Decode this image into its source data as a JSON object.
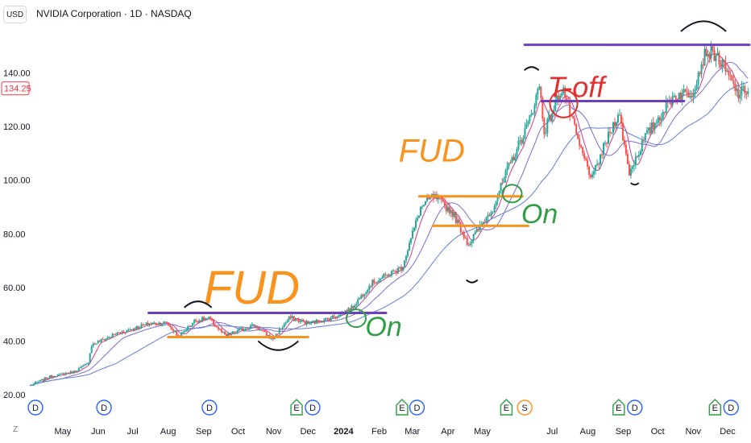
{
  "header": {
    "currency": "USD",
    "title": "NVIDIA Corporation · 1D · NASDAQ"
  },
  "z_label": "Z",
  "chart_data": {
    "type": "candlestick",
    "symbol": "NVIDIA Corporation",
    "interval": "1D",
    "exchange": "NASDAQ",
    "currency": "USD",
    "last_price": "134.25",
    "ylim": [
      17,
      157
    ],
    "y_ticks": [
      "20.00",
      "40.00",
      "60.00",
      "80.00",
      "100.00",
      "120.00",
      "140.00"
    ],
    "y_tick_values": [
      20,
      40,
      60,
      80,
      100,
      120,
      140
    ],
    "x_ticks": [
      "May",
      "Jun",
      "Jul",
      "Aug",
      "Sep",
      "Oct",
      "Nov",
      "Dec",
      "2024",
      "Feb",
      "Mar",
      "Apr",
      "May",
      "Jul",
      "Aug",
      "Sep",
      "Oct",
      "Nov",
      "Dec"
    ],
    "x_tick_dates": [
      "2023-05-01",
      "2023-06-01",
      "2023-07-01",
      "2023-08-01",
      "2023-09-01",
      "2023-10-01",
      "2023-11-01",
      "2023-12-01",
      "2024-01-01",
      "2024-02-01",
      "2024-03-01",
      "2024-04-01",
      "2024-05-01",
      "2024-07-01",
      "2024-08-01",
      "2024-09-01",
      "2024-10-01",
      "2024-11-01",
      "2024-12-01"
    ],
    "x_range": [
      "2023-04-03",
      "2024-12-20"
    ],
    "price_path": [
      [
        "2023-04-03",
        23.5
      ],
      [
        "2023-04-20",
        26.8
      ],
      [
        "2023-05-10",
        28.5
      ],
      [
        "2023-05-23",
        31.5
      ],
      [
        "2023-05-26",
        38.5
      ],
      [
        "2023-06-15",
        42.5
      ],
      [
        "2023-07-15",
        46.5
      ],
      [
        "2023-07-31",
        46.8
      ],
      [
        "2023-08-10",
        41.5
      ],
      [
        "2023-08-24",
        47.5
      ],
      [
        "2023-09-05",
        48.5
      ],
      [
        "2023-09-20",
        41.8
      ],
      [
        "2023-10-05",
        44.5
      ],
      [
        "2023-10-15",
        46.0
      ],
      [
        "2023-10-31",
        40.7
      ],
      [
        "2023-11-15",
        48.8
      ],
      [
        "2023-12-01",
        46.5
      ],
      [
        "2023-12-20",
        48.5
      ],
      [
        "2024-01-08",
        52.2
      ],
      [
        "2024-01-25",
        61.5
      ],
      [
        "2024-02-21",
        67.5
      ],
      [
        "2024-03-08",
        89.5
      ],
      [
        "2024-03-19",
        94.0
      ],
      [
        "2024-04-05",
        88.0
      ],
      [
        "2024-04-19",
        76.2
      ],
      [
        "2024-05-10",
        89.5
      ],
      [
        "2024-05-23",
        103.8
      ],
      [
        "2024-06-10",
        121.0
      ],
      [
        "2024-06-20",
        135.5
      ],
      [
        "2024-06-24",
        118.1
      ],
      [
        "2024-07-10",
        134.9
      ],
      [
        "2024-07-25",
        112.3
      ],
      [
        "2024-08-05",
        100.4
      ],
      [
        "2024-08-12",
        109.0
      ],
      [
        "2024-08-28",
        125.6
      ],
      [
        "2024-09-06",
        102.8
      ],
      [
        "2024-09-20",
        116.0
      ],
      [
        "2024-10-15",
        131.6
      ],
      [
        "2024-10-31",
        132.8
      ],
      [
        "2024-11-12",
        148.2
      ],
      [
        "2024-11-21",
        146.7
      ],
      [
        "2024-12-02",
        138.6
      ],
      [
        "2024-12-10",
        132.0
      ],
      [
        "2024-12-20",
        134.25
      ]
    ],
    "moving_averages": [
      {
        "color": "#cc3b8f",
        "window_days": 10
      },
      {
        "color": "#7e6bd0",
        "window_days": 30
      },
      {
        "color": "#5f7fd6",
        "window_days": 75
      }
    ],
    "colors": {
      "up": "#26a69a",
      "down": "#ef5350",
      "price_tag": "#f23645"
    },
    "grid": false,
    "events": [
      {
        "label": "D",
        "date": "2023-06-06",
        "kind": "dividend"
      },
      {
        "label": "D",
        "date": "2023-09-06",
        "kind": "dividend"
      },
      {
        "label": "E",
        "date": "2023-11-21",
        "kind": "earnings"
      },
      {
        "label": "D",
        "date": "2023-12-05",
        "kind": "dividend"
      },
      {
        "label": "E",
        "date": "2024-02-21",
        "kind": "earnings"
      },
      {
        "label": "D",
        "date": "2024-03-05",
        "kind": "dividend"
      },
      {
        "label": "E",
        "date": "2024-05-22",
        "kind": "earnings"
      },
      {
        "label": "S",
        "date": "2024-06-07",
        "kind": "split"
      },
      {
        "label": "E",
        "date": "2024-08-28",
        "kind": "earnings"
      },
      {
        "label": "D",
        "date": "2024-09-11",
        "kind": "dividend"
      },
      {
        "label": "E",
        "date": "2024-11-20",
        "kind": "earnings"
      },
      {
        "label": "D",
        "date": "2024-12-04",
        "kind": "dividend"
      }
    ],
    "first_event": {
      "label": "D",
      "date": "2023-03-07",
      "kind": "dividend"
    },
    "annotations": {
      "texts": [
        {
          "text": "FUD",
          "color": "#f7931e",
          "anchor": [
            "2023-09-01",
            54
          ]
        },
        {
          "text": "FUD",
          "color": "#f7931e",
          "anchor": [
            "2024-02-18",
            107
          ]
        },
        {
          "text": "On",
          "color": "#2f9e44",
          "anchor": [
            "2024-01-20",
            42
          ]
        },
        {
          "text": "On",
          "color": "#2f9e44",
          "anchor": [
            "2024-06-04",
            84
          ]
        },
        {
          "text": "T-off",
          "color": "#e03131",
          "anchor": [
            "2024-06-27",
            131
          ]
        }
      ],
      "levels": [
        {
          "color": "#6a3fc1",
          "price": 50.5,
          "from": "2023-07-15",
          "to": "2024-02-07"
        },
        {
          "color": "#f7931e",
          "price": 41.5,
          "from": "2023-08-01",
          "to": "2023-12-01"
        },
        {
          "color": "#f7931e",
          "price": 94.0,
          "from": "2024-03-07",
          "to": "2024-06-05"
        },
        {
          "color": "#f7931e",
          "price": 83.0,
          "from": "2024-03-19",
          "to": "2024-06-10"
        },
        {
          "color": "#6a3fc1",
          "price": 129.5,
          "from": "2024-06-22",
          "to": "2024-10-24"
        },
        {
          "color": "#6a3fc1",
          "price": 150.5,
          "from": "2024-06-07",
          "to": "2024-12-20"
        }
      ]
    }
  }
}
